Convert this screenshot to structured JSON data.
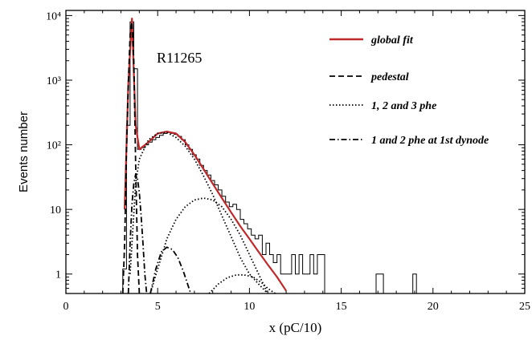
{
  "chart_data": {
    "type": "line",
    "title": "",
    "annotation": "R11265",
    "xlabel": "x (pC/10)",
    "ylabel": "Events number",
    "xlim": [
      0,
      25
    ],
    "ylim": [
      0.5,
      12000
    ],
    "yscale": "log",
    "grid": false,
    "legend_position": "top-right",
    "x_ticks": [
      0,
      5,
      10,
      15,
      20,
      25
    ],
    "x_tick_labels": [
      "0",
      "5",
      "10",
      "15",
      "20",
      "25"
    ],
    "y_ticks": [
      1,
      10,
      100,
      1000,
      10000
    ],
    "y_tick_labels": [
      "1",
      "10",
      "10²",
      "10³",
      "10⁴"
    ],
    "legend": [
      {
        "label": "global fit",
        "style": "solid",
        "color": "#c0282a"
      },
      {
        "label": "pedestal",
        "style": "dashed",
        "color": "#000000"
      },
      {
        "label": "1, 2 and 3 phe",
        "style": "dotted",
        "color": "#000000"
      },
      {
        "label": "1 and 2 phe at 1st dynode",
        "style": "dashdot",
        "color": "#000000"
      }
    ],
    "series": [
      {
        "name": "global fit",
        "style": "solid",
        "color": "#c0282a",
        "x": [
          3.2,
          3.4,
          3.6,
          3.8,
          4.0,
          4.5,
          5.0,
          5.5,
          6.0,
          6.5,
          7.0,
          7.5,
          8.0,
          8.5,
          9.0,
          9.5,
          10.0,
          10.5,
          11.0,
          11.5,
          12.0
        ],
        "y": [
          10,
          900,
          9000,
          200,
          85,
          110,
          150,
          160,
          150,
          110,
          70,
          42,
          25,
          15,
          9,
          5.5,
          3.5,
          2.2,
          1.4,
          0.9,
          0.55
        ]
      },
      {
        "name": "pedestal",
        "style": "dashed",
        "color": "#000000",
        "x": [
          3.1,
          3.2,
          3.3,
          3.4,
          3.5,
          3.6,
          3.7,
          3.8,
          3.9,
          4.0
        ],
        "y": [
          0.5,
          3,
          80,
          900,
          5000,
          8000,
          2000,
          50,
          2,
          0.5
        ]
      },
      {
        "name": "1 phe",
        "style": "dotted",
        "color": "#000000",
        "x": [
          3.5,
          3.8,
          4.0,
          4.5,
          5.0,
          5.5,
          6.0,
          6.5,
          7.0,
          7.5,
          8.0,
          8.5,
          9.0,
          9.5,
          10.0,
          10.5,
          11.0
        ],
        "y": [
          1,
          25,
          60,
          120,
          150,
          155,
          130,
          95,
          60,
          33,
          17,
          8,
          3.8,
          1.8,
          1,
          0.7,
          0.5
        ]
      },
      {
        "name": "2 phe",
        "style": "dotted",
        "color": "#000000",
        "x": [
          4.6,
          5.0,
          5.5,
          6.0,
          6.5,
          7.0,
          7.5,
          8.0,
          8.5,
          9.0,
          9.5,
          10.0,
          10.5,
          11.0
        ],
        "y": [
          0.5,
          1.2,
          3.5,
          7,
          11,
          14,
          15,
          14,
          11,
          7,
          4,
          2,
          1,
          0.5
        ]
      },
      {
        "name": "3 phe",
        "style": "dotted",
        "color": "#000000",
        "x": [
          7.8,
          8.3,
          8.8,
          9.3,
          9.7,
          10.2,
          10.7,
          11.0,
          11.4
        ],
        "y": [
          0.5,
          0.7,
          0.88,
          0.97,
          0.97,
          0.9,
          0.72,
          0.6,
          0.5
        ]
      },
      {
        "name": "1 phe at 1st dynode",
        "style": "dashdot",
        "color": "#000000",
        "x": [
          3.4,
          3.5,
          3.6,
          3.7,
          3.8,
          3.9,
          4.0,
          4.1,
          4.2,
          4.3,
          4.4
        ],
        "y": [
          0.5,
          3,
          12,
          25,
          35,
          30,
          18,
          8,
          3,
          1,
          0.5
        ]
      },
      {
        "name": "2 phe at 1st dynode",
        "style": "dashdot",
        "color": "#000000",
        "x": [
          4.6,
          4.9,
          5.2,
          5.5,
          5.8,
          6.1,
          6.4,
          6.8
        ],
        "y": [
          0.5,
          1.2,
          2.2,
          2.6,
          2.4,
          1.8,
          1.1,
          0.5
        ]
      }
    ],
    "histogram": {
      "name": "data",
      "bin_width": 0.2,
      "bins": [
        [
          2.9,
          0.5
        ],
        [
          3.1,
          1.2
        ],
        [
          3.3,
          200
        ],
        [
          3.5,
          8000
        ],
        [
          3.7,
          1500
        ],
        [
          3.9,
          85
        ],
        [
          4.1,
          90
        ],
        [
          4.3,
          100
        ],
        [
          4.5,
          110
        ],
        [
          4.7,
          120
        ],
        [
          4.9,
          130
        ],
        [
          5.1,
          140
        ],
        [
          5.3,
          150
        ],
        [
          5.5,
          155
        ],
        [
          5.7,
          150
        ],
        [
          5.9,
          145
        ],
        [
          6.1,
          135
        ],
        [
          6.3,
          120
        ],
        [
          6.5,
          100
        ],
        [
          6.7,
          85
        ],
        [
          6.9,
          70
        ],
        [
          7.1,
          60
        ],
        [
          7.3,
          48
        ],
        [
          7.5,
          40
        ],
        [
          7.7,
          34
        ],
        [
          7.9,
          28
        ],
        [
          8.1,
          24
        ],
        [
          8.3,
          20
        ],
        [
          8.5,
          16
        ],
        [
          8.7,
          13
        ],
        [
          8.9,
          11
        ],
        [
          9.1,
          12
        ],
        [
          9.3,
          10
        ],
        [
          9.5,
          7
        ],
        [
          9.7,
          6
        ],
        [
          9.9,
          5
        ],
        [
          10.1,
          4
        ],
        [
          10.3,
          3.5
        ],
        [
          10.5,
          4
        ],
        [
          10.7,
          2
        ],
        [
          10.9,
          3
        ],
        [
          11.1,
          2
        ],
        [
          11.3,
          1.5
        ],
        [
          11.5,
          2
        ],
        [
          11.7,
          1
        ],
        [
          11.9,
          1
        ],
        [
          12.1,
          1
        ],
        [
          12.3,
          2
        ],
        [
          12.5,
          1
        ],
        [
          12.7,
          2
        ],
        [
          12.9,
          1
        ],
        [
          13.1,
          1
        ],
        [
          13.3,
          2
        ],
        [
          13.5,
          1
        ],
        [
          13.7,
          2
        ],
        [
          13.9,
          2
        ],
        [
          16.9,
          1
        ],
        [
          17.1,
          1
        ],
        [
          18.9,
          1
        ]
      ]
    }
  }
}
